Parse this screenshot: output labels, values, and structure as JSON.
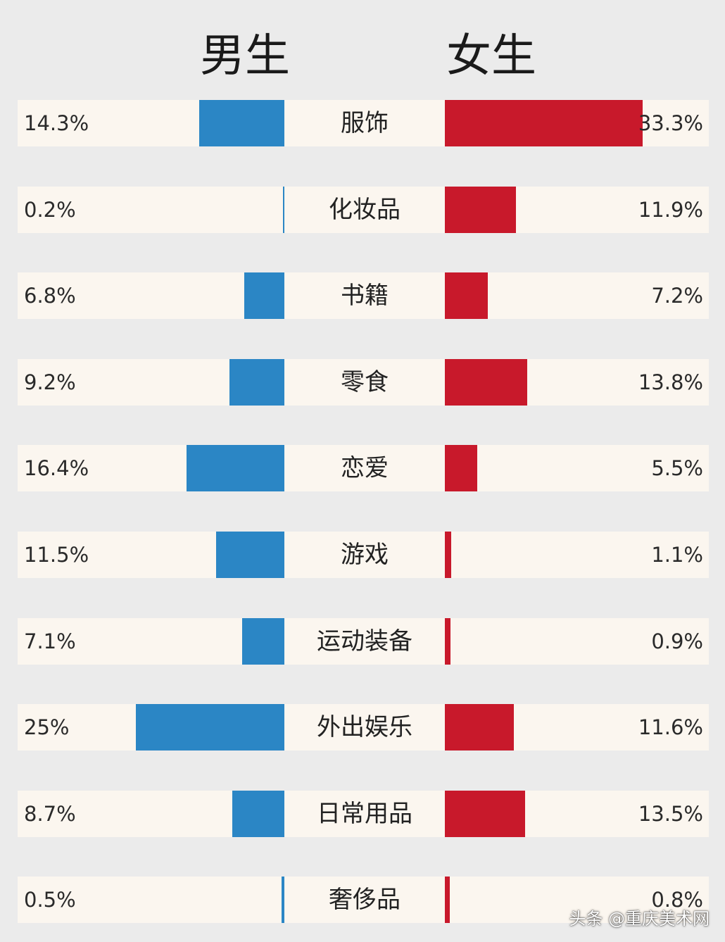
{
  "chart_data": {
    "type": "bar",
    "series": [
      {
        "name": "男生",
        "values": [
          14.3,
          0.2,
          6.8,
          9.2,
          16.4,
          11.5,
          7.1,
          25,
          8.7,
          0.5
        ]
      },
      {
        "name": "女生",
        "values": [
          33.3,
          11.9,
          7.2,
          13.8,
          5.5,
          1.1,
          0.9,
          11.6,
          13.5,
          0.8
        ]
      }
    ],
    "categories": [
      "服饰",
      "化妆品",
      "书籍",
      "零食",
      "恋爱",
      "游戏",
      "运动装备",
      "外出娱乐",
      "日常用品",
      "奢侈品"
    ],
    "value_labels_male": [
      "14.3%",
      "0.2%",
      "6.8%",
      "9.2%",
      "16.4%",
      "11.5%",
      "7.1%",
      "25%",
      "8.7%",
      "0.5%"
    ],
    "value_labels_female": [
      "33.3%",
      "11.9%",
      "7.2%",
      "13.8%",
      "5.5%",
      "1.1%",
      "0.9%",
      "11.6%",
      "13.5%",
      "0.8%"
    ],
    "colors": {
      "male": "#2b86c5",
      "female": "#c8192b",
      "row_bg": "#fbf6ef",
      "page_bg": "#ebebeb"
    }
  },
  "watermark": "头条 @重庆美术网"
}
